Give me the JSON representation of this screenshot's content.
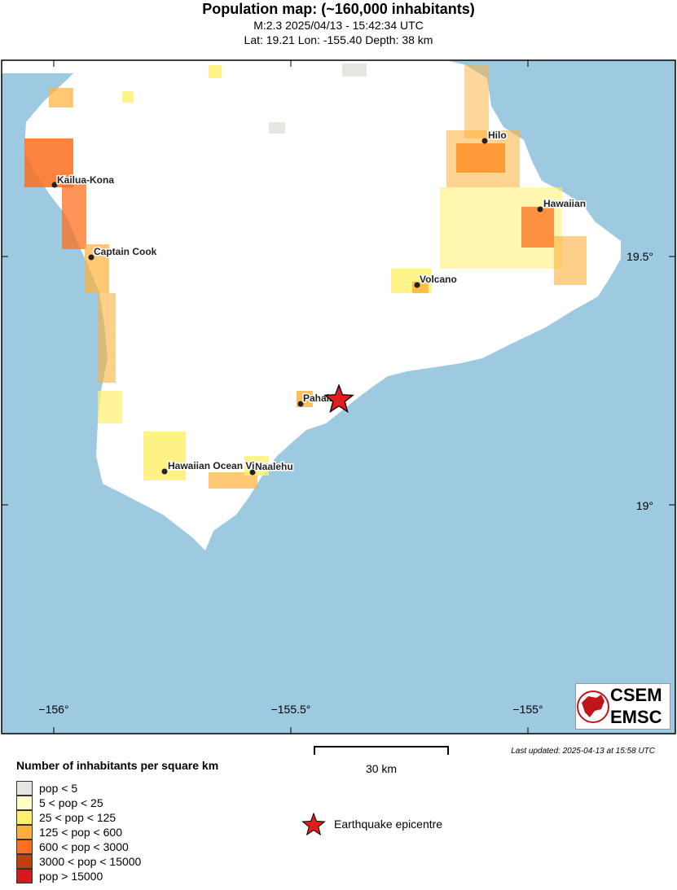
{
  "header": {
    "title": "Population map: (~160,000 inhabitants)",
    "subtitle_line1": "M:2.3 2025/04/13 - 15:42:34 UTC",
    "subtitle_line2": "Lat: 19.21 Lon: -155.40 Depth: 38 km"
  },
  "map": {
    "ocean_color": "#9ECAE1",
    "land_color": "#FFFFFF",
    "lon_ticks": [
      "−156°",
      "−155.5°",
      "−155°"
    ],
    "lat_ticks": [
      "19.5°",
      "19°"
    ],
    "cities": [
      {
        "name": "Hilo"
      },
      {
        "name": "Kailua-Kona"
      },
      {
        "name": "Hawaiian"
      },
      {
        "name": "Captain Cook"
      },
      {
        "name": "Volcano"
      },
      {
        "name": "Pahala"
      },
      {
        "name": "Hawaiian Ocean View"
      },
      {
        "name": "Naalehu"
      }
    ],
    "epicentre": {
      "lat": 19.21,
      "lon": -155.4
    }
  },
  "last_updated": "Last updated: 2025-04-13 at 15:58 UTC",
  "scale_label": "30 km",
  "legend": {
    "title": "Number of inhabitants per square km",
    "items": [
      {
        "label": "pop < 5",
        "color": "#E6E6E0"
      },
      {
        "label": "5 < pop < 25",
        "color": "#FFFFC8"
      },
      {
        "label": "25 < pop < 125",
        "color": "#FFF06E"
      },
      {
        "label": "125 < pop < 600",
        "color": "#FDB03A"
      },
      {
        "label": "600 < pop < 3000",
        "color": "#FC6F1E"
      },
      {
        "label": "3000 < pop < 15000",
        "color": "#BF3F0E"
      },
      {
        "label": "pop > 15000",
        "color": "#D7191C"
      }
    ],
    "epicentre_label": "Earthquake epicentre"
  },
  "logo": {
    "line1": "CSEM",
    "line2": "EMSC"
  }
}
